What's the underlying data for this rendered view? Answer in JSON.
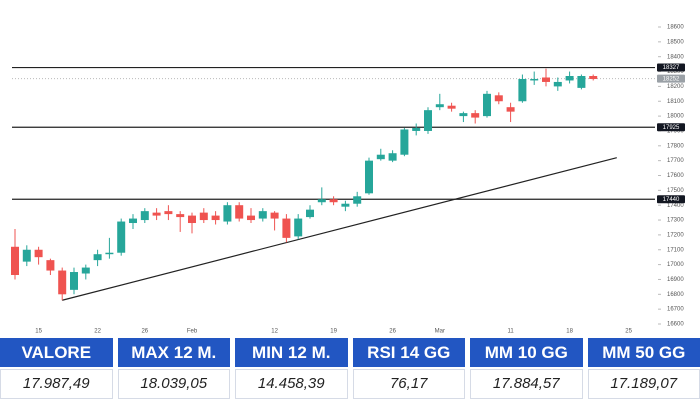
{
  "chart_data": {
    "type": "candlestick",
    "categories": [
      null,
      null,
      "15",
      null,
      null,
      null,
      null,
      "22",
      null,
      null,
      null,
      "26",
      null,
      null,
      null,
      "Feb",
      null,
      null,
      null,
      null,
      null,
      null,
      "12",
      null,
      null,
      null,
      null,
      "19",
      null,
      null,
      null,
      null,
      "26",
      null,
      null,
      null,
      "Mar",
      null,
      null,
      null,
      null,
      null,
      "11",
      null,
      null,
      null,
      null,
      "18",
      null,
      null,
      null,
      null,
      "25"
    ],
    "open": [
      17120,
      17020,
      17100,
      17030,
      16960,
      16830,
      16940,
      17030,
      17070,
      17080,
      17280,
      17300,
      17350,
      17360,
      17340,
      17330,
      17350,
      17330,
      17290,
      17400,
      17330,
      17310,
      17350,
      17310,
      17190,
      17320,
      17420,
      17440,
      17390,
      17410,
      17480,
      17710,
      17700,
      17740,
      17900,
      17900,
      18060,
      18070,
      18000,
      18020,
      18000,
      18140,
      18060,
      18100,
      18240,
      18260,
      18200,
      18240,
      18190,
      18270,
      null,
      null,
      null
    ],
    "high": [
      17240,
      17130,
      17120,
      17040,
      16980,
      16980,
      17000,
      17100,
      17180,
      17310,
      17340,
      17380,
      17380,
      17400,
      17360,
      17350,
      17380,
      17360,
      17420,
      17420,
      17380,
      17380,
      17360,
      17340,
      17340,
      17400,
      17520,
      17460,
      17430,
      17490,
      17720,
      17780,
      17770,
      17920,
      17950,
      18060,
      18150,
      18090,
      18030,
      18040,
      18170,
      18160,
      18090,
      18280,
      18300,
      18320,
      18260,
      18300,
      18280,
      18280,
      null,
      null,
      null
    ],
    "low": [
      16900,
      16990,
      17000,
      16930,
      16760,
      16800,
      16900,
      16990,
      17040,
      17060,
      17240,
      17280,
      17300,
      17300,
      17220,
      17210,
      17280,
      17270,
      17270,
      17290,
      17280,
      17290,
      17230,
      17150,
      17170,
      17310,
      17400,
      17400,
      17360,
      17390,
      17470,
      17700,
      17690,
      17730,
      17870,
      17880,
      18040,
      18030,
      17960,
      17950,
      17990,
      18080,
      17960,
      18090,
      18210,
      18200,
      18170,
      18220,
      18180,
      18240,
      null,
      null,
      null
    ],
    "close": [
      16930,
      17100,
      17050,
      16960,
      16800,
      16950,
      16980,
      17070,
      17080,
      17290,
      17310,
      17360,
      17330,
      17340,
      17320,
      17280,
      17300,
      17300,
      17400,
      17310,
      17300,
      17360,
      17310,
      17180,
      17310,
      17370,
      17440,
      17420,
      17410,
      17460,
      17700,
      17740,
      17750,
      17910,
      17920,
      18040,
      18080,
      18050,
      18020,
      17990,
      18150,
      18100,
      18030,
      18250,
      18250,
      18230,
      18230,
      18270,
      18270,
      18250,
      null,
      null,
      null
    ],
    "up_color": "#26a69a",
    "down_color": "#ef5350",
    "ylim": [
      16600,
      18600
    ],
    "yticks": [
      16600,
      16700,
      16800,
      16900,
      17000,
      17100,
      17200,
      17300,
      17400,
      17500,
      17600,
      17700,
      17800,
      17900,
      18000,
      18100,
      18200,
      18300,
      18400,
      18500,
      18600
    ],
    "levels": [
      18327,
      17925,
      17440
    ],
    "last_price": 18252,
    "trendline": {
      "x": [
        4,
        51
      ],
      "values": [
        16760,
        17720
      ]
    }
  },
  "table": {
    "header": [
      "VALORE",
      "MAX 12 M.",
      "MIN 12 M.",
      "RSI 14 GG",
      "MM 10 GG",
      "MM 50 GG"
    ],
    "rows": [
      [
        "17.987,49",
        "18.039,05",
        "14.458,39",
        "76,17",
        "17.884,57",
        "17.189,07"
      ]
    ]
  }
}
